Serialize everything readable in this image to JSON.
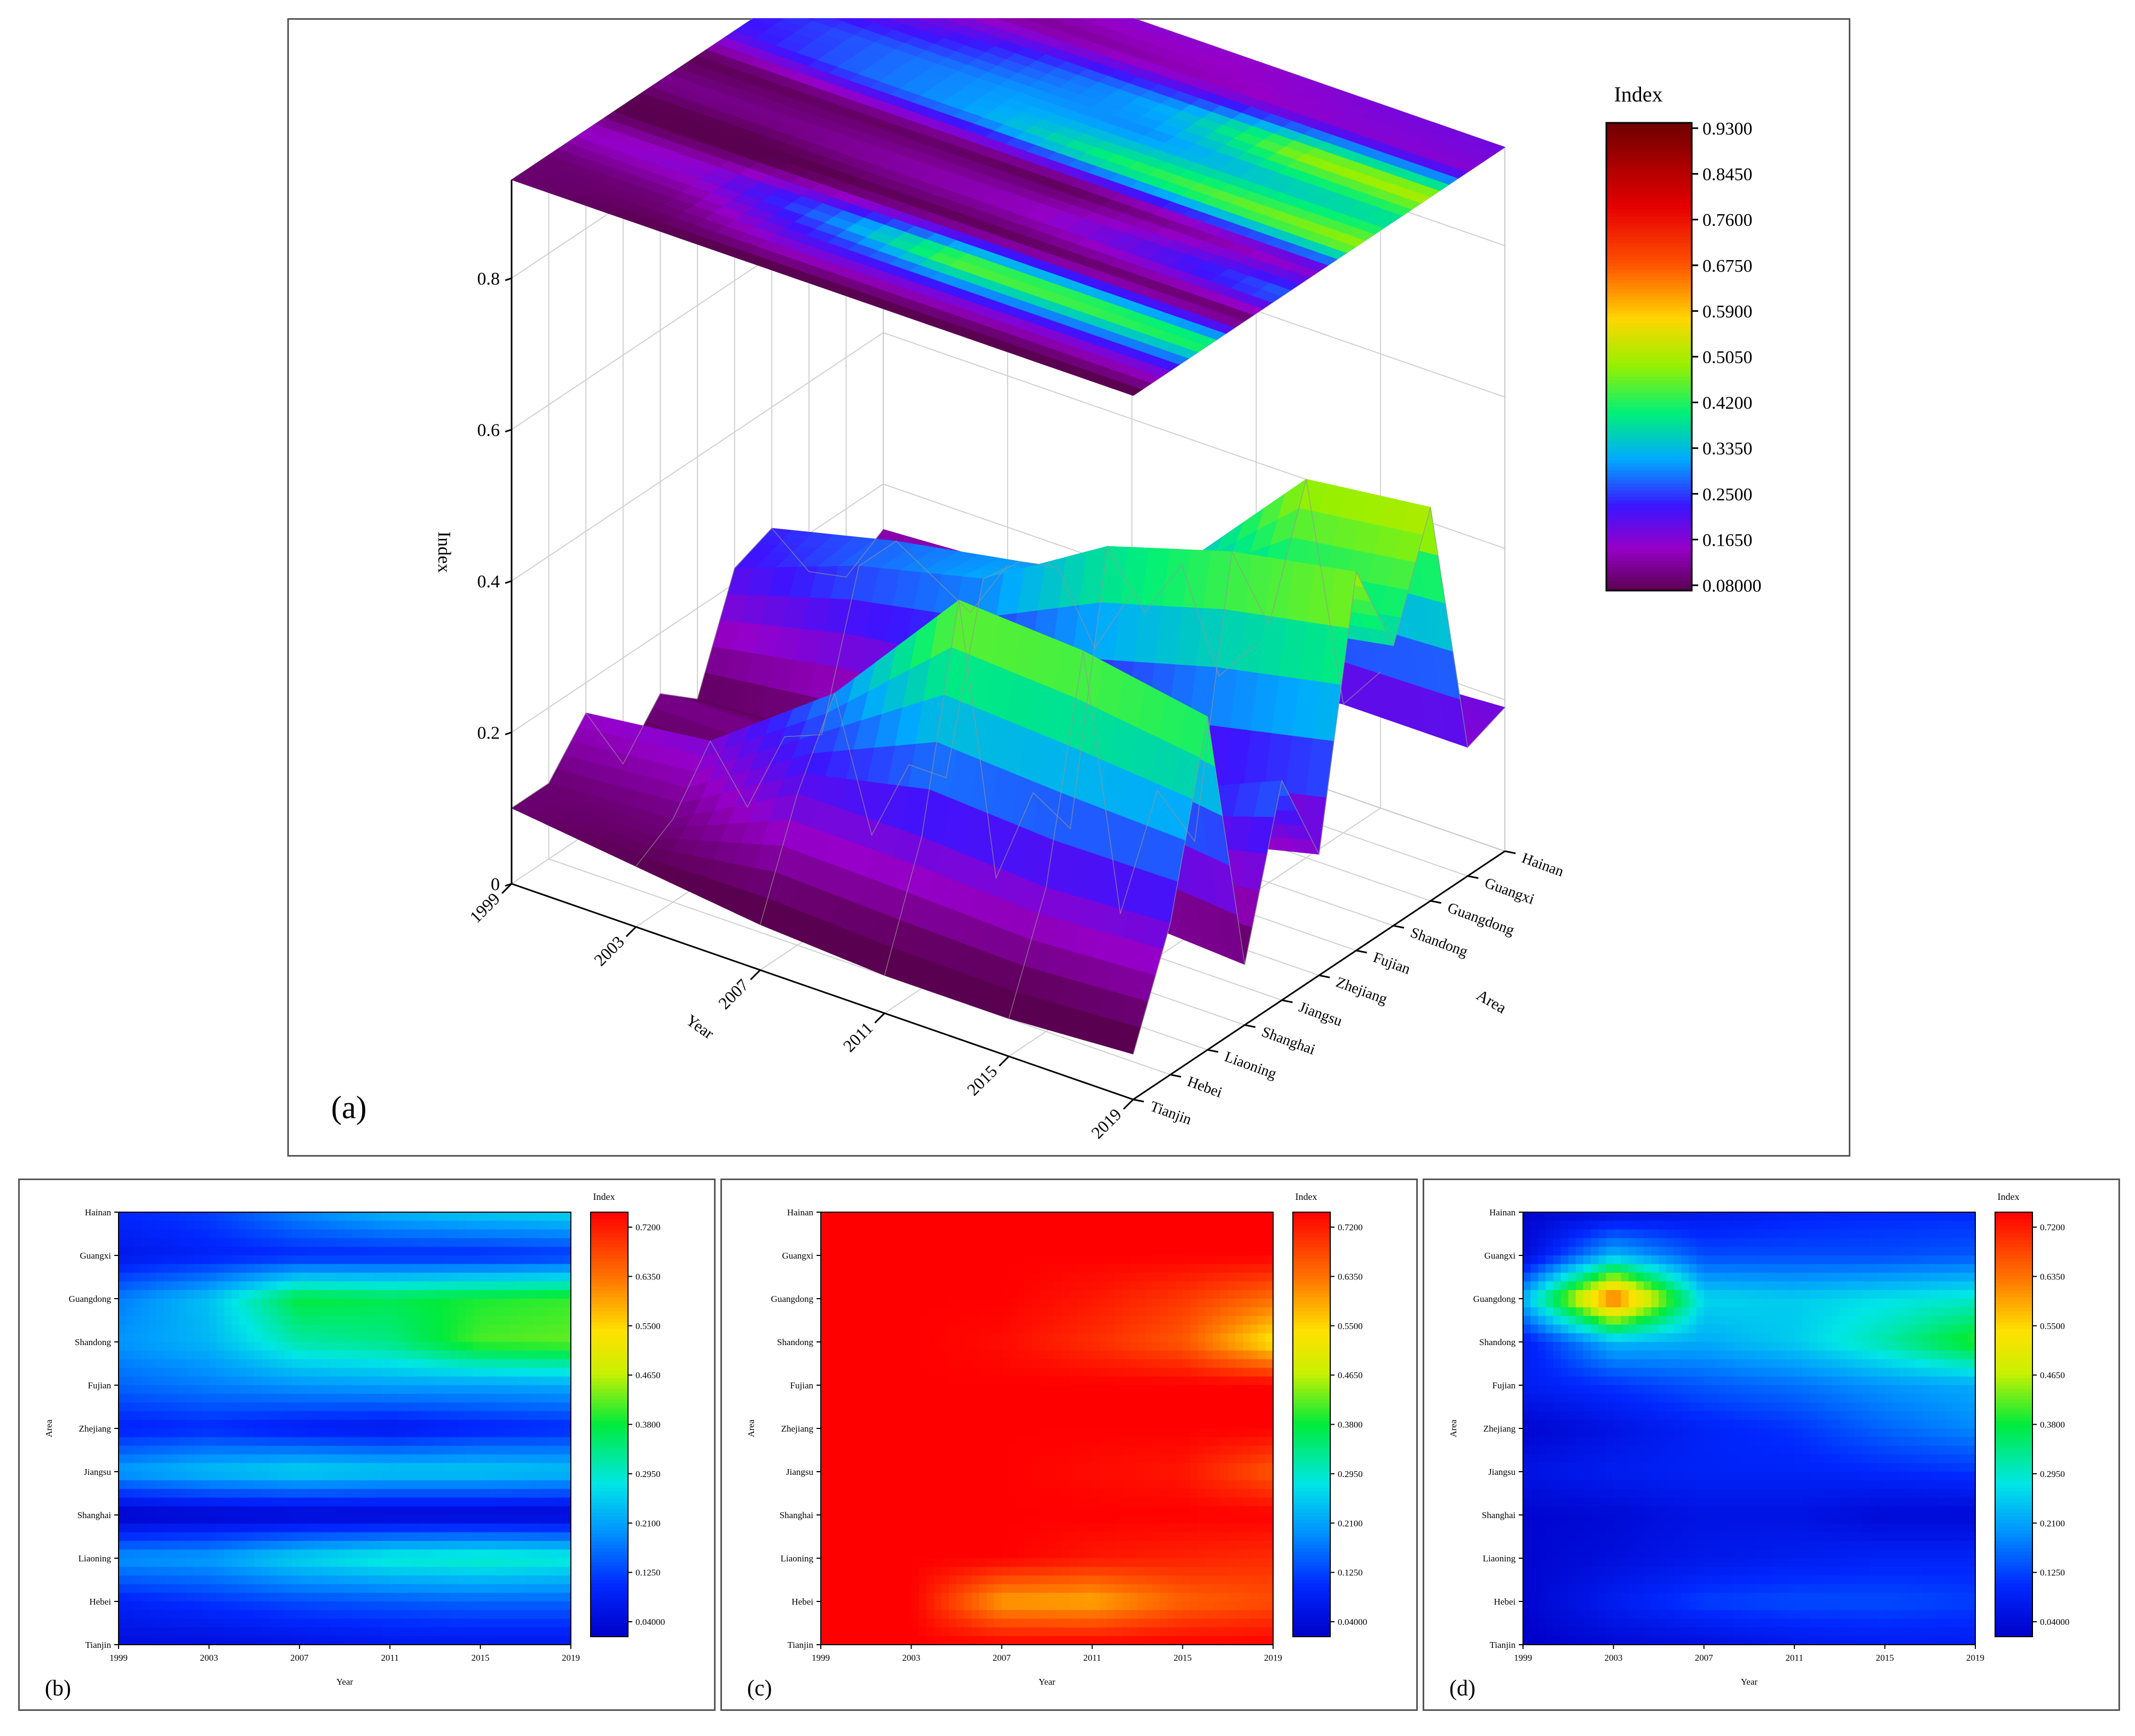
{
  "chart_data": [
    {
      "panel_label": "(a)",
      "type": "surface3d",
      "xlabel": "Year",
      "ylabel": "Area",
      "zlabel": "Index",
      "x": [
        1999,
        2003,
        2007,
        2011,
        2015,
        2019
      ],
      "x_ticks": [
        "1999",
        "2003",
        "2007",
        "2011",
        "2015",
        "2019"
      ],
      "y_ticks": [
        "Tianjin",
        "Hebei",
        "Liaoning",
        "Shanghai",
        "Jiangsu",
        "Zhejiang",
        "Fujian",
        "Shandong",
        "Guangdong",
        "Guangxi",
        "Hainan"
      ],
      "z_ticks": [
        "0",
        "0.2",
        "0.4",
        "0.6",
        "0.8"
      ],
      "zlim": [
        0,
        0.93
      ],
      "colorbar": {
        "title": "Index",
        "ticks": [
          "0.08000",
          "0.1650",
          "0.2500",
          "0.3350",
          "0.4200",
          "0.5050",
          "0.5900",
          "0.6750",
          "0.7600",
          "0.8450",
          "0.9300"
        ],
        "range": [
          0.08,
          0.93
        ]
      },
      "series": [
        {
          "name": "Tianjin",
          "values": [
            0.1,
            0.08,
            0.06,
            0.05,
            0.05,
            0.06
          ]
        },
        {
          "name": "Hebei",
          "values": [
            0.1,
            0.11,
            0.2,
            0.2,
            0.19,
            0.2
          ]
        },
        {
          "name": "Liaoning",
          "values": [
            0.16,
            0.18,
            0.3,
            0.48,
            0.47,
            0.44
          ]
        },
        {
          "name": "Shanghai",
          "values": [
            0.06,
            0.06,
            0.08,
            0.08,
            0.09,
            0.08
          ]
        },
        {
          "name": "Jiangsu",
          "values": [
            0.12,
            0.12,
            0.14,
            0.16,
            0.22,
            0.29
          ]
        },
        {
          "name": "Zhejiang",
          "values": [
            0.08,
            0.09,
            0.09,
            0.08,
            0.12,
            0.16
          ]
        },
        {
          "name": "Fujian",
          "values": [
            0.22,
            0.28,
            0.32,
            0.42,
            0.47,
            0.5
          ]
        },
        {
          "name": "Shandong",
          "values": [
            0.24,
            0.28,
            0.31,
            0.3,
            0.34,
            0.37
          ]
        },
        {
          "name": "Guangdong",
          "values": [
            0.15,
            0.2,
            0.27,
            0.33,
            0.5,
            0.52
          ]
        },
        {
          "name": "Guangxi",
          "values": [
            0.11,
            0.12,
            0.13,
            0.15,
            0.17,
            0.17
          ]
        },
        {
          "name": "Hainan",
          "values": [
            0.14,
            0.15,
            0.17,
            0.16,
            0.18,
            0.19
          ]
        }
      ]
    },
    {
      "panel_label": "(b)",
      "type": "heatmap",
      "xlabel": "Year",
      "ylabel": "Area",
      "x": [
        1999,
        2003,
        2007,
        2011,
        2015,
        2019
      ],
      "x_ticks": [
        "1999",
        "2003",
        "2007",
        "2011",
        "2015",
        "2019"
      ],
      "y": [
        "Tianjin",
        "Hebei",
        "Liaoning",
        "Shanghai",
        "Jiangsu",
        "Zhejiang",
        "Fujian",
        "Shandong",
        "Guangdong",
        "Guangxi",
        "Hainan"
      ],
      "colorbar": {
        "title": "Index",
        "ticks": [
          "0.04000",
          "0.1250",
          "0.2100",
          "0.2950",
          "0.3800",
          "0.4650",
          "0.5500",
          "0.6350",
          "0.7200"
        ],
        "range": [
          0.04,
          0.72
        ]
      },
      "z": [
        [
          0.07,
          0.07,
          0.08,
          0.09,
          0.09,
          0.09
        ],
        [
          0.11,
          0.13,
          0.15,
          0.16,
          0.17,
          0.17
        ],
        [
          0.21,
          0.22,
          0.27,
          0.3,
          0.31,
          0.3
        ],
        [
          0.04,
          0.05,
          0.05,
          0.05,
          0.05,
          0.05
        ],
        [
          0.22,
          0.25,
          0.27,
          0.26,
          0.26,
          0.25
        ],
        [
          0.11,
          0.12,
          0.1,
          0.09,
          0.11,
          0.12
        ],
        [
          0.17,
          0.19,
          0.21,
          0.22,
          0.22,
          0.23
        ],
        [
          0.21,
          0.24,
          0.32,
          0.34,
          0.41,
          0.42
        ],
        [
          0.19,
          0.25,
          0.38,
          0.37,
          0.39,
          0.4
        ],
        [
          0.09,
          0.11,
          0.12,
          0.12,
          0.12,
          0.13
        ],
        [
          0.12,
          0.14,
          0.2,
          0.24,
          0.26,
          0.27
        ]
      ]
    },
    {
      "panel_label": "(c)",
      "type": "heatmap",
      "xlabel": "Year",
      "ylabel": "Area",
      "x": [
        1999,
        2003,
        2007,
        2011,
        2015,
        2019
      ],
      "x_ticks": [
        "1999",
        "2003",
        "2007",
        "2011",
        "2015",
        "2019"
      ],
      "y": [
        "Tianjin",
        "Hebei",
        "Liaoning",
        "Shanghai",
        "Jiangsu",
        "Zhejiang",
        "Fujian",
        "Shandong",
        "Guangdong",
        "Guangxi",
        "Hainan"
      ],
      "colorbar": {
        "title": "Index",
        "ticks": [
          "0.04000",
          "0.1250",
          "0.2100",
          "0.2950",
          "0.3800",
          "0.4650",
          "0.5500",
          "0.6350",
          "0.7200"
        ],
        "range": [
          0.04,
          0.72
        ]
      },
      "z": [
        [
          0.72,
          0.72,
          0.72,
          0.72,
          0.72,
          0.72
        ],
        [
          0.72,
          0.72,
          0.58,
          0.57,
          0.63,
          0.65
        ],
        [
          0.72,
          0.72,
          0.72,
          0.7,
          0.69,
          0.68
        ],
        [
          0.72,
          0.72,
          0.72,
          0.72,
          0.72,
          0.72
        ],
        [
          0.72,
          0.72,
          0.72,
          0.71,
          0.7,
          0.64
        ],
        [
          0.72,
          0.72,
          0.72,
          0.72,
          0.72,
          0.72
        ],
        [
          0.72,
          0.72,
          0.72,
          0.72,
          0.72,
          0.72
        ],
        [
          0.72,
          0.72,
          0.71,
          0.68,
          0.64,
          0.52
        ],
        [
          0.72,
          0.72,
          0.72,
          0.7,
          0.67,
          0.62
        ],
        [
          0.72,
          0.72,
          0.72,
          0.72,
          0.72,
          0.72
        ],
        [
          0.72,
          0.72,
          0.72,
          0.72,
          0.72,
          0.72
        ]
      ]
    },
    {
      "panel_label": "(d)",
      "type": "heatmap",
      "xlabel": "Year",
      "ylabel": "Area",
      "x": [
        1999,
        2003,
        2007,
        2011,
        2015,
        2019
      ],
      "x_ticks": [
        "1999",
        "2003",
        "2007",
        "2011",
        "2015",
        "2019"
      ],
      "y": [
        "Tianjin",
        "Hebei",
        "Liaoning",
        "Shanghai",
        "Jiangsu",
        "Zhejiang",
        "Fujian",
        "Shandong",
        "Guangdong",
        "Guangxi",
        "Hainan"
      ],
      "colorbar": {
        "title": "Index",
        "ticks": [
          "0.04000",
          "0.1250",
          "0.2100",
          "0.2950",
          "0.3800",
          "0.4650",
          "0.5500",
          "0.6350",
          "0.7200"
        ],
        "range": [
          0.04,
          0.72
        ]
      },
      "z": [
        [
          0.04,
          0.06,
          0.07,
          0.09,
          0.1,
          0.1
        ],
        [
          0.05,
          0.1,
          0.14,
          0.15,
          0.15,
          0.14
        ],
        [
          0.05,
          0.07,
          0.09,
          0.1,
          0.11,
          0.11
        ],
        [
          0.05,
          0.06,
          0.08,
          0.08,
          0.06,
          0.06
        ],
        [
          0.08,
          0.1,
          0.11,
          0.11,
          0.12,
          0.13
        ],
        [
          0.05,
          0.08,
          0.11,
          0.13,
          0.17,
          0.2
        ],
        [
          0.1,
          0.13,
          0.16,
          0.18,
          0.21,
          0.23
        ],
        [
          0.1,
          0.24,
          0.23,
          0.26,
          0.32,
          0.4
        ],
        [
          0.24,
          0.64,
          0.27,
          0.26,
          0.28,
          0.3
        ],
        [
          0.06,
          0.24,
          0.15,
          0.15,
          0.15,
          0.16
        ],
        [
          0.05,
          0.07,
          0.09,
          0.11,
          0.12,
          0.12
        ]
      ]
    }
  ]
}
